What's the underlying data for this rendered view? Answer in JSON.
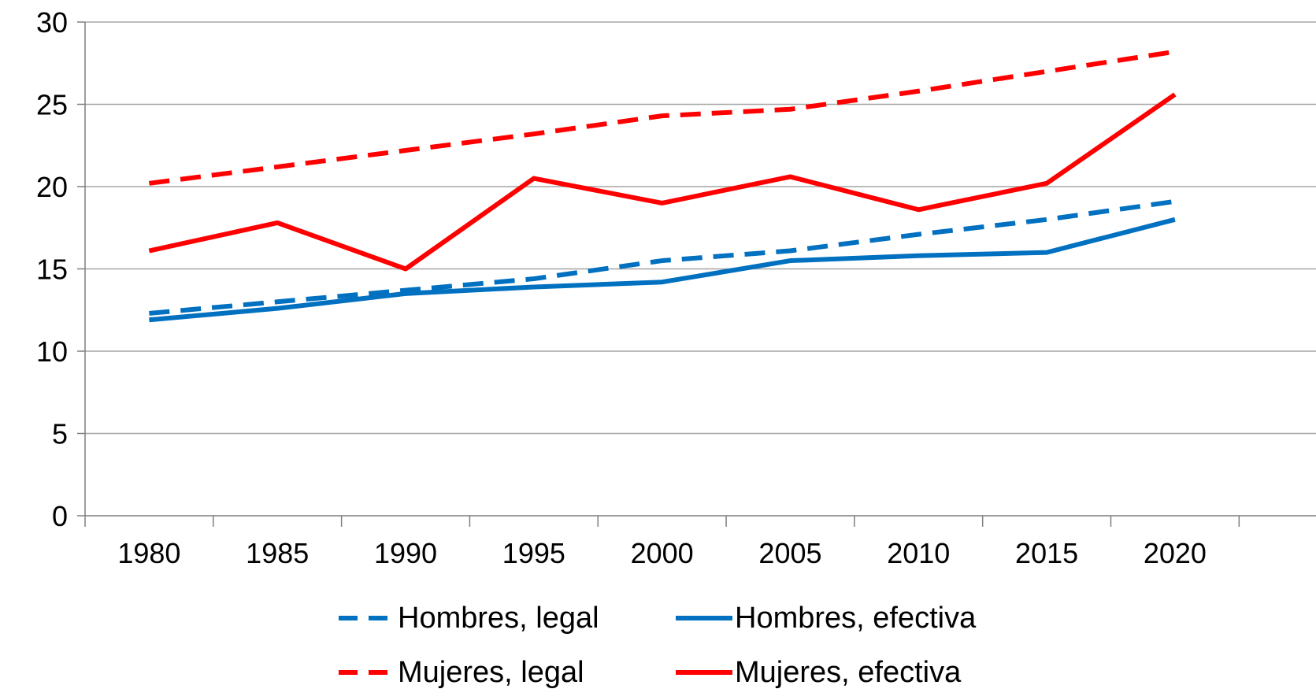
{
  "chart_data": {
    "type": "line",
    "title": "",
    "xlabel": "",
    "ylabel": "",
    "categories": [
      "1980",
      "1985",
      "1990",
      "1995",
      "2000",
      "2005",
      "2010",
      "2015",
      "2020"
    ],
    "ylim": [
      0,
      30
    ],
    "yticks": [
      "0",
      "5",
      "10",
      "15",
      "20",
      "25",
      "30"
    ],
    "grid": "horizontal",
    "legend_position": "bottom",
    "series": [
      {
        "name": "Hombres, legal",
        "color": "#0070c0",
        "style": "dashed",
        "values": [
          12.3,
          13.0,
          13.7,
          14.4,
          15.5,
          16.1,
          17.1,
          18.0,
          19.1
        ]
      },
      {
        "name": "Hombres, efectiva",
        "color": "#0070c0",
        "style": "solid",
        "values": [
          11.9,
          12.6,
          13.5,
          13.9,
          14.2,
          15.5,
          15.8,
          16.0,
          18.0
        ]
      },
      {
        "name": "Mujeres, legal",
        "color": "#ff0000",
        "style": "dashed",
        "values": [
          20.2,
          21.2,
          22.2,
          23.2,
          24.3,
          24.7,
          25.8,
          27.0,
          28.2
        ]
      },
      {
        "name": "Mujeres, efectiva",
        "color": "#ff0000",
        "style": "solid",
        "values": [
          16.1,
          17.8,
          15.0,
          20.5,
          19.0,
          20.6,
          18.6,
          20.2,
          25.6
        ]
      }
    ]
  }
}
